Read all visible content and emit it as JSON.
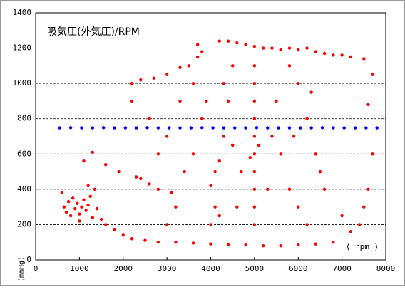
{
  "chart_data": {
    "type": "scatter",
    "title": "吸気圧(外気圧)/RPM",
    "xlabel": "( rpm )",
    "ylabel": "(mmHg)",
    "xlim": [
      0,
      8000
    ],
    "xticks": [
      0,
      1000,
      2000,
      3000,
      4000,
      5000,
      6000,
      7000,
      8000
    ],
    "ylim": [
      0,
      1400
    ],
    "yticks": [
      0,
      200,
      400,
      600,
      800,
      1000,
      1200,
      1400
    ],
    "grid": true,
    "series": [
      {
        "color": "#ff0000",
        "x": [
          600,
          650,
          700,
          750,
          800,
          850,
          900,
          950,
          1000,
          1050,
          1100,
          1150,
          1200,
          1250,
          1300,
          1350,
          1400,
          1200,
          1000,
          1500,
          1600,
          1800,
          2000,
          2200,
          2500,
          2800,
          3200,
          3600,
          4000,
          4400,
          4800,
          5200,
          5600,
          6000,
          6400,
          6800,
          1100,
          1300,
          1600,
          1900,
          2300,
          2400,
          2600,
          2800,
          3100,
          2200,
          2200,
          2400,
          2700,
          3000,
          3300,
          3500,
          3700,
          3800,
          3700,
          4200,
          4400,
          4600,
          4800,
          5000,
          5200,
          5400,
          5600,
          5800,
          6000,
          6200,
          6400,
          6600,
          6800,
          7000,
          7200,
          7500,
          7700,
          7600,
          7700,
          7600,
          7500,
          7400,
          7200,
          7000,
          6600,
          6400,
          6200,
          6000,
          5800,
          5000,
          5000,
          5000,
          5000,
          5000,
          5000,
          5000,
          5000,
          5000,
          5000,
          5100,
          4900,
          4200,
          4100,
          4000,
          4100,
          4200,
          4000,
          4300,
          4400,
          4500,
          4300,
          3800,
          3600,
          3400,
          3200,
          3000,
          3000,
          2800,
          2600,
          3300,
          5500,
          5600,
          5800,
          6000,
          6200,
          6500,
          6300,
          5300,
          5400,
          5900,
          4600,
          4700,
          4500,
          3900,
          3600
        ],
        "values": [
          380,
          300,
          270,
          330,
          250,
          350,
          290,
          320,
          260,
          300,
          340,
          280,
          310,
          360,
          240,
          400,
          290,
          420,
          220,
          230,
          200,
          170,
          140,
          120,
          110,
          100,
          100,
          95,
          90,
          85,
          85,
          80,
          80,
          85,
          90,
          100,
          560,
          610,
          540,
          500,
          470,
          460,
          430,
          400,
          380,
          900,
          1000,
          1020,
          1030,
          1050,
          1090,
          1100,
          1150,
          1180,
          1220,
          1240,
          1240,
          1230,
          1220,
          1210,
          1200,
          1200,
          1190,
          1200,
          1190,
          1200,
          1180,
          1170,
          1160,
          1160,
          1150,
          1140,
          1050,
          880,
          600,
          400,
          300,
          200,
          160,
          250,
          400,
          600,
          800,
          1000,
          1100,
          1100,
          1000,
          900,
          800,
          700,
          600,
          500,
          400,
          300,
          200,
          650,
          580,
          560,
          500,
          420,
          300,
          250,
          200,
          700,
          900,
          1100,
          1000,
          800,
          600,
          500,
          300,
          200,
          700,
          600,
          800,
          900,
          900,
          600,
          400,
          300,
          200,
          500,
          950,
          400,
          700,
          700,
          300,
          500,
          650,
          900,
          1000
        ]
      },
      {
        "color": "#0000ff",
        "x": [
          550,
          800,
          1050,
          1300,
          1550,
          1800,
          2050,
          2300,
          2550,
          2800,
          3050,
          3300,
          3550,
          3800,
          4050,
          4300,
          4550,
          4800,
          5050,
          5300,
          5550,
          5800,
          6050,
          6300,
          6550,
          6800,
          7050,
          7300,
          7550,
          7800
        ],
        "values": [
          748,
          749,
          748,
          748,
          749,
          748,
          748,
          748,
          749,
          748,
          748,
          748,
          748,
          749,
          748,
          748,
          748,
          748,
          749,
          748,
          748,
          748,
          748,
          748,
          749,
          748,
          748,
          748,
          748,
          748
        ]
      }
    ]
  }
}
